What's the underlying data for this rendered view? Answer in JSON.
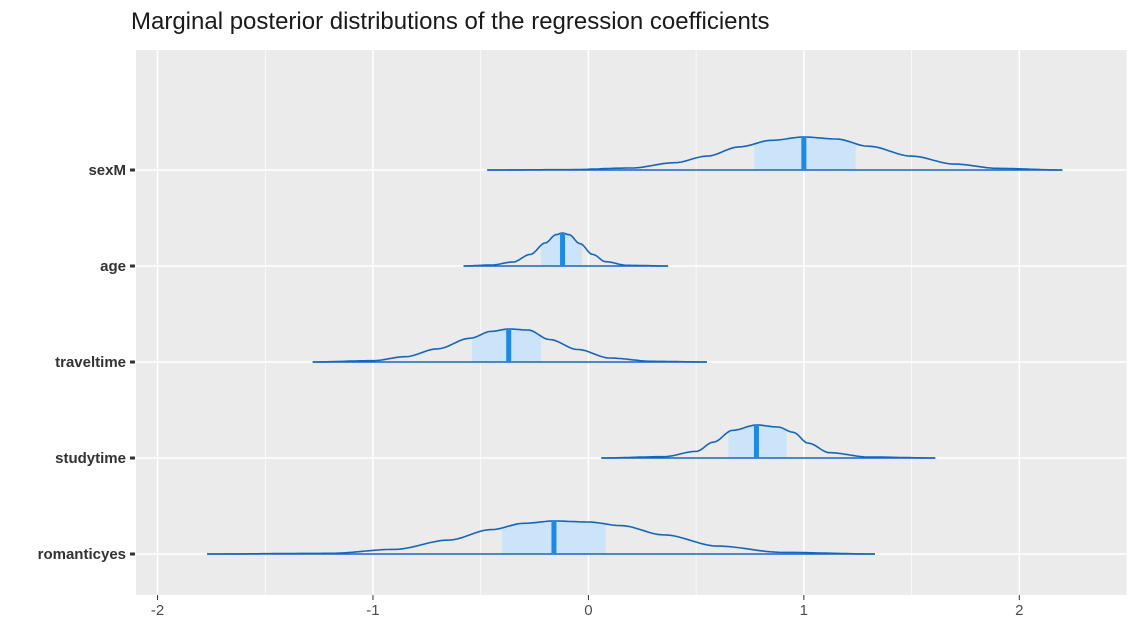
{
  "chart_data": {
    "type": "ridgeline",
    "title": "Marginal posterior distributions of the regression coefficients",
    "xlabel": "",
    "ylabel": "",
    "xlim": [
      -2.1,
      2.5
    ],
    "x_ticks": [
      -2,
      -1,
      0,
      1,
      2
    ],
    "x_tick_labels": [
      "-2",
      "-1",
      "0",
      "1",
      "2"
    ],
    "grid": true,
    "colors": {
      "panel": "#ebebeb",
      "grid": "#ffffff",
      "line": "#1565c0",
      "interval_fill": "#cce4f9",
      "median": "#1e88e5"
    },
    "series": [
      {
        "name": "sexM",
        "min": -0.47,
        "max": 2.2,
        "median": 1.0,
        "interval": [
          0.77,
          1.24
        ],
        "density_x": [
          -0.47,
          -0.1,
          0.2,
          0.4,
          0.55,
          0.7,
          0.85,
          1.0,
          1.15,
          1.3,
          1.5,
          1.7,
          1.9,
          2.2
        ],
        "density_y": [
          0.0,
          0.01,
          0.06,
          0.22,
          0.42,
          0.7,
          0.9,
          1.0,
          0.94,
          0.72,
          0.42,
          0.18,
          0.05,
          0.0
        ]
      },
      {
        "name": "age",
        "min": -0.58,
        "max": 0.37,
        "median": -0.12,
        "interval": [
          -0.22,
          -0.03
        ],
        "density_x": [
          -0.58,
          -0.45,
          -0.35,
          -0.27,
          -0.2,
          -0.15,
          -0.12,
          -0.09,
          -0.04,
          0.02,
          0.08,
          0.18,
          0.37
        ],
        "density_y": [
          0.0,
          0.03,
          0.12,
          0.35,
          0.7,
          0.95,
          1.0,
          0.95,
          0.68,
          0.35,
          0.13,
          0.02,
          0.0
        ]
      },
      {
        "name": "traveltime",
        "min": -1.28,
        "max": 0.55,
        "median": -0.37,
        "interval": [
          -0.54,
          -0.22
        ],
        "density_x": [
          -1.28,
          -1.0,
          -0.85,
          -0.7,
          -0.55,
          -0.45,
          -0.37,
          -0.28,
          -0.18,
          -0.05,
          0.1,
          0.3,
          0.55
        ],
        "density_y": [
          0.0,
          0.04,
          0.16,
          0.4,
          0.72,
          0.93,
          1.0,
          0.97,
          0.68,
          0.38,
          0.12,
          0.02,
          0.0
        ]
      },
      {
        "name": "studytime",
        "min": 0.06,
        "max": 1.61,
        "median": 0.78,
        "interval": [
          0.65,
          0.92
        ],
        "density_x": [
          0.06,
          0.35,
          0.5,
          0.58,
          0.67,
          0.78,
          0.88,
          0.95,
          1.02,
          1.12,
          1.3,
          1.61
        ],
        "density_y": [
          0.0,
          0.04,
          0.2,
          0.48,
          0.84,
          1.0,
          0.94,
          0.78,
          0.45,
          0.16,
          0.03,
          0.0
        ]
      },
      {
        "name": "romanticyes",
        "min": -1.77,
        "max": 1.33,
        "median": -0.16,
        "interval": [
          -0.4,
          0.08
        ],
        "density_x": [
          -1.77,
          -1.2,
          -0.9,
          -0.65,
          -0.45,
          -0.3,
          -0.16,
          0.0,
          0.15,
          0.35,
          0.6,
          0.9,
          1.33
        ],
        "density_y": [
          0.0,
          0.02,
          0.14,
          0.42,
          0.74,
          0.93,
          1.0,
          0.97,
          0.86,
          0.58,
          0.24,
          0.05,
          0.0
        ]
      }
    ]
  }
}
